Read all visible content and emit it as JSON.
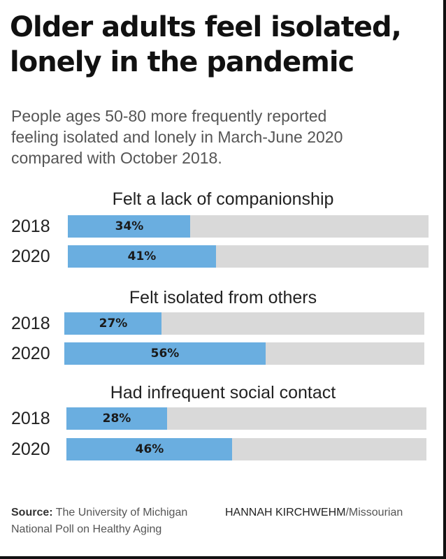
{
  "title_line1": "Older adults feel isolated,",
  "title_line2": "lonely in the pandemic",
  "subtitle_line1": "People ages 50-80 more frequently reported",
  "subtitle_line2": "feeling isolated and lonely in March-June 2020",
  "subtitle_line3": "compared with October 2018.",
  "colors": {
    "bar_fill": "#6aaee0",
    "bar_track": "#d9d9d9"
  },
  "chart_data": [
    {
      "type": "bar",
      "title": "Felt a lack of companionship",
      "categories": [
        "2018",
        "2020"
      ],
      "values": [
        34,
        41
      ],
      "labels": [
        "34%",
        "41%"
      ],
      "ylim": [
        0,
        100
      ]
    },
    {
      "type": "bar",
      "title": "Felt isolated from others",
      "categories": [
        "2018",
        "2020"
      ],
      "values": [
        27,
        56
      ],
      "labels": [
        "27%",
        "56%"
      ],
      "ylim": [
        0,
        100
      ]
    },
    {
      "type": "bar",
      "title": "Had infrequent social contact",
      "categories": [
        "2018",
        "2020"
      ],
      "values": [
        28,
        46
      ],
      "labels": [
        "28%",
        "46%"
      ],
      "ylim": [
        0,
        100
      ]
    }
  ],
  "footer": {
    "source_label": "Source:",
    "source_line1": "The University of Michigan",
    "source_line2": "National Poll on Healthy Aging",
    "credit_name": "HANNAH KIRCHWEHM",
    "credit_org": "/Missourian"
  }
}
